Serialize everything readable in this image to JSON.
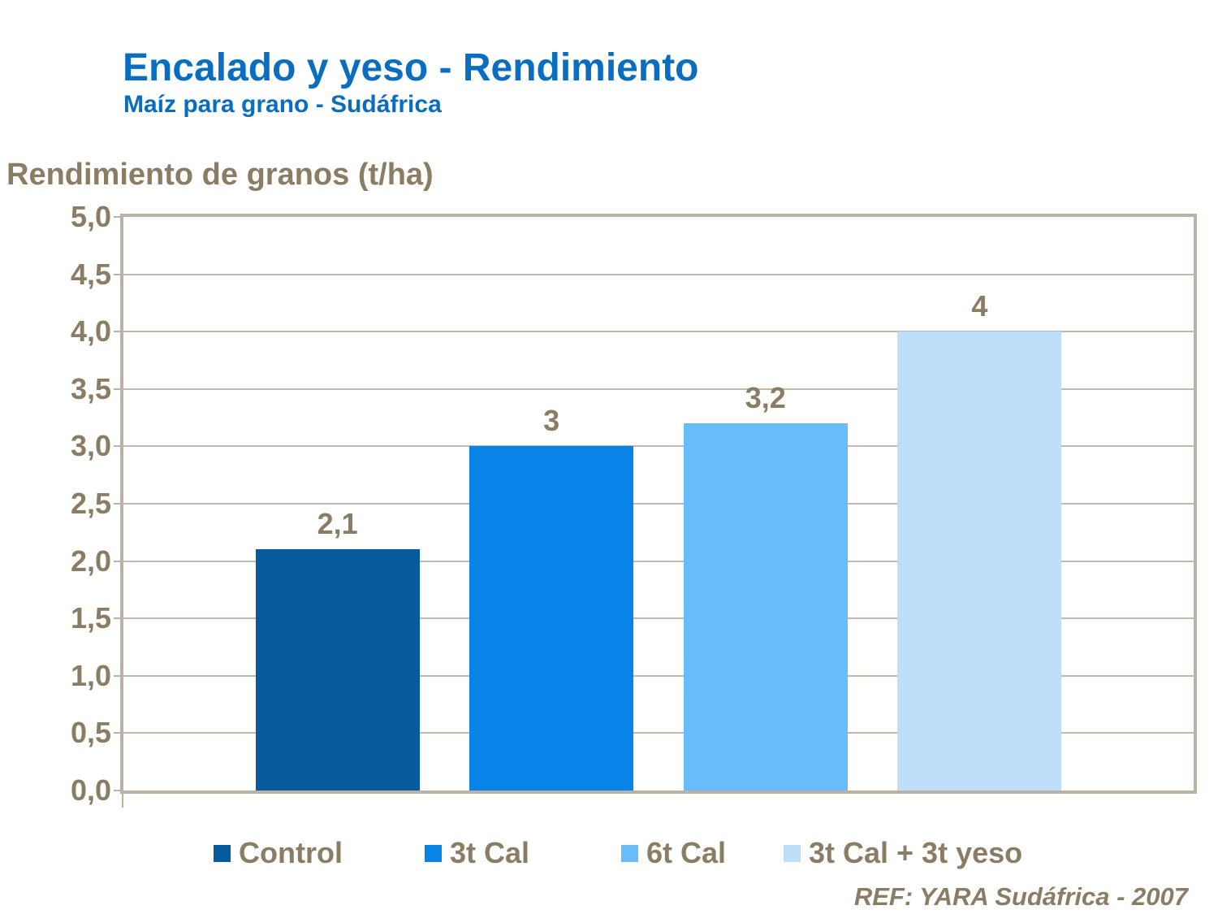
{
  "slide": {
    "title": "Encalado y yeso - Rendimiento",
    "subtitle": "Maíz para grano - Sudáfrica",
    "reference": "REF: YARA Sudáfrica - 2007"
  },
  "colors": {
    "title_blue": "#096EC2",
    "text_brown": "#8B7C64",
    "plot_border": "#BCB1A5",
    "gridline": "#C2B8AB",
    "background": "#FFFFFF"
  },
  "chart_data": {
    "type": "bar",
    "title": "Rendimiento de granos (t/ha)",
    "ylabel": "Rendimiento de granos (t/ha)",
    "xlabel": "",
    "categories": [
      "Control",
      "3t Cal",
      "6t Cal",
      "3t Cal + 3t yeso"
    ],
    "values": [
      2.1,
      3,
      3.2,
      4
    ],
    "value_labels": [
      "2,1",
      "3",
      "3,2",
      "4"
    ],
    "bar_colors": [
      "#075A9E",
      "#0884E8",
      "#67BCF9",
      "#BEDFFA"
    ],
    "ylim": [
      0,
      5
    ],
    "ytick_step": 0.5,
    "ytick_labels": [
      "0,0",
      "0,5",
      "1,0",
      "1,5",
      "2,0",
      "2,5",
      "3,0",
      "3,5",
      "4,0",
      "4,5",
      "5,0"
    ],
    "decimal_separator": ",",
    "grid": true,
    "legend_position": "bottom"
  },
  "legend": {
    "items": [
      {
        "label": "Control",
        "color": "#075A9E"
      },
      {
        "label": "3t Cal",
        "color": "#0884E8"
      },
      {
        "label": "6t Cal",
        "color": "#67BCF9"
      },
      {
        "label": "3t Cal + 3t yeso",
        "color": "#BEDFFA"
      }
    ]
  }
}
